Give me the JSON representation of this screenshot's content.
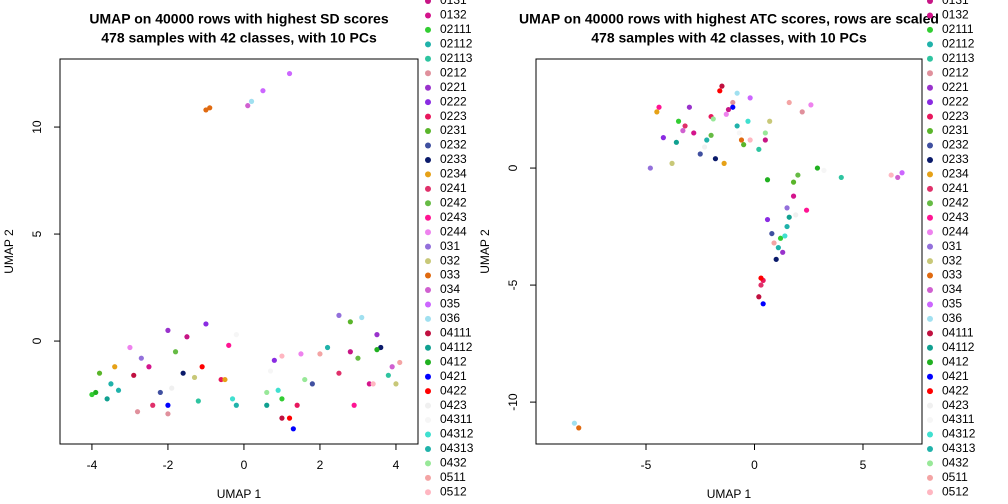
{
  "chart_data": [
    {
      "type": "scatter",
      "title": "UMAP on 40000 rows with highest SD scores",
      "subtitle": "478 samples with 42 classes, with 10 PCs",
      "x_label": "UMAP 1",
      "y_label": "UMAP 2",
      "xlim": [
        -4.84,
        4.58
      ],
      "ylim": [
        -4.81,
        13.18
      ],
      "xticks": [
        -4,
        -2,
        0,
        2,
        4
      ],
      "yticks": [
        0,
        5,
        10
      ],
      "series": [
        {
          "name": "0131",
          "color": "#c71585",
          "x": [
            -1.5,
            2.8
          ],
          "values": [
            0.2,
            -0.5
          ]
        },
        {
          "name": "0132",
          "color": "#d4148c",
          "x": [
            -2.5,
            3.3
          ],
          "values": [
            -1.2,
            -2.0
          ]
        },
        {
          "name": "02111",
          "color": "#32cd32",
          "x": [
            -4.0,
            1.0
          ],
          "values": [
            -2.5,
            -2.7
          ]
        },
        {
          "name": "02112",
          "color": "#20b2aa",
          "x": [
            -3.5,
            2.2
          ],
          "values": [
            -2.0,
            -0.3
          ]
        },
        {
          "name": "02113",
          "color": "#2ec4a0",
          "x": [
            -1.2,
            3.8
          ],
          "values": [
            -2.8,
            -1.6
          ]
        },
        {
          "name": "0212",
          "color": "#e0909c",
          "x": [
            -2.8,
            -2.0
          ],
          "values": [
            -3.3,
            -3.4
          ]
        },
        {
          "name": "0221",
          "color": "#9932cc",
          "x": [
            -2.0,
            3.5
          ],
          "values": [
            0.5,
            0.3
          ]
        },
        {
          "name": "0222",
          "color": "#8a2be2",
          "x": [
            -1.0,
            0.8
          ],
          "values": [
            0.8,
            -0.9
          ]
        },
        {
          "name": "0223",
          "color": "#e8175d",
          "x": [
            -0.6,
            1.4
          ],
          "values": [
            -1.8,
            -3.0
          ]
        },
        {
          "name": "0231",
          "color": "#5ab52a",
          "x": [
            -3.8,
            2.8
          ],
          "values": [
            -1.5,
            0.9
          ]
        },
        {
          "name": "0232",
          "color": "#4050a0",
          "x": [
            -2.2,
            1.8
          ],
          "values": [
            -2.4,
            -2.0
          ]
        },
        {
          "name": "0233",
          "color": "#0a1a6a",
          "x": [
            -1.6,
            3.6
          ],
          "values": [
            -1.5,
            -0.3
          ]
        },
        {
          "name": "0234",
          "color": "#e6a117",
          "x": [
            -3.4,
            -0.5
          ],
          "values": [
            -1.2,
            -1.8
          ]
        },
        {
          "name": "0241",
          "color": "#e0306a",
          "x": [
            -2.4,
            2.5
          ],
          "values": [
            -3.0,
            -1.5
          ]
        },
        {
          "name": "0242",
          "color": "#66bb44",
          "x": [
            -1.8,
            3.0
          ],
          "values": [
            -0.5,
            -0.8
          ]
        },
        {
          "name": "0243",
          "color": "#ff1493",
          "x": [
            -0.4,
            2.9
          ],
          "values": [
            -0.2,
            -3.0
          ]
        },
        {
          "name": "0244",
          "color": "#ee82ee",
          "x": [
            -3.0,
            1.5
          ],
          "values": [
            -0.3,
            -0.6
          ]
        },
        {
          "name": "031",
          "color": "#9370db",
          "x": [
            -2.7,
            2.5
          ],
          "values": [
            -0.8,
            1.2
          ]
        },
        {
          "name": "032",
          "color": "#c8c878",
          "x": [
            -1.3,
            4.0
          ],
          "values": [
            -1.7,
            -2.0
          ]
        },
        {
          "name": "033",
          "color": "#e06a10",
          "x": [
            -0.9,
            -1.0
          ],
          "values": [
            10.9,
            10.8
          ]
        },
        {
          "name": "034",
          "color": "#d060d0",
          "x": [
            0.1,
            3.9
          ],
          "values": [
            11.0,
            -1.2
          ]
        },
        {
          "name": "035",
          "color": "#cc66ff",
          "x": [
            1.2,
            0.5
          ],
          "values": [
            12.5,
            11.7
          ]
        },
        {
          "name": "036",
          "color": "#a0e0f0",
          "x": [
            0.2,
            3.1
          ],
          "values": [
            11.2,
            1.1
          ]
        },
        {
          "name": "04111",
          "color": "#c01040",
          "x": [
            -2.9,
            1.0
          ],
          "values": [
            -1.6,
            -3.6
          ]
        },
        {
          "name": "04112",
          "color": "#10a090",
          "x": [
            0.6,
            -3.6
          ],
          "values": [
            -3.0,
            -2.7
          ]
        },
        {
          "name": "0412",
          "color": "#20b020",
          "x": [
            3.5,
            -3.9
          ],
          "values": [
            -0.4,
            -2.4
          ]
        },
        {
          "name": "0421",
          "color": "#0000ff",
          "x": [
            -2.0,
            1.3
          ],
          "values": [
            -3.0,
            -4.1
          ]
        },
        {
          "name": "0422",
          "color": "#ff0000",
          "x": [
            1.2,
            -1.1
          ],
          "values": [
            -3.6,
            -1.2
          ]
        },
        {
          "name": "0423",
          "color": "#f0f0f0",
          "x": [
            2.0,
            -1.9
          ],
          "values": [
            -0.6,
            -2.2
          ]
        },
        {
          "name": "04311",
          "color": "#f6f6f6",
          "x": [
            0.7,
            -0.2
          ],
          "values": [
            -1.4,
            0.3
          ]
        },
        {
          "name": "04312",
          "color": "#40e0d0",
          "x": [
            -0.3,
            0.9
          ],
          "values": [
            -2.7,
            -2.3
          ]
        },
        {
          "name": "04313",
          "color": "#20b2aa",
          "x": [
            -0.2,
            -3.3
          ],
          "values": [
            -3.0,
            -2.3
          ]
        },
        {
          "name": "0432",
          "color": "#98e898",
          "x": [
            0.6,
            1.6
          ],
          "values": [
            -2.4,
            -1.8
          ]
        },
        {
          "name": "0511",
          "color": "#f4a4a4",
          "x": [
            4.1,
            2.0
          ],
          "values": [
            -1.0,
            -0.6
          ]
        },
        {
          "name": "0512",
          "color": "#ffb6c1",
          "x": [
            1.0,
            3.4
          ],
          "values": [
            -0.7,
            -2.0
          ]
        }
      ]
    },
    {
      "type": "scatter",
      "title": "UMAP on 40000 rows with highest ATC scores, rows are scaled",
      "subtitle": "478 samples with 42 classes, with 10 PCs",
      "x_label": "UMAP 1",
      "y_label": "UMAP 2",
      "xlim": [
        -10.07,
        7.72
      ],
      "ylim": [
        -11.79,
        4.66
      ],
      "xticks": [
        -5,
        0,
        5
      ],
      "yticks": [
        -10,
        -5,
        0
      ],
      "series": [
        {
          "name": "0131",
          "color": "#c71585",
          "x": [
            -1.2,
            0.5
          ],
          "values": [
            2.5,
            1.2
          ]
        },
        {
          "name": "0132",
          "color": "#d4148c",
          "x": [
            -2.8,
            1.8
          ],
          "values": [
            1.5,
            -1.2
          ]
        },
        {
          "name": "02111",
          "color": "#32cd32",
          "x": [
            -3.5,
            1.2
          ],
          "values": [
            2.0,
            -3.0
          ]
        },
        {
          "name": "02112",
          "color": "#20b2aa",
          "x": [
            -0.8,
            1.5
          ],
          "values": [
            1.8,
            -2.5
          ]
        },
        {
          "name": "02113",
          "color": "#2ec4a0",
          "x": [
            0.2,
            4.0
          ],
          "values": [
            0.8,
            -0.4
          ]
        },
        {
          "name": "0212",
          "color": "#e0909c",
          "x": [
            -1.0,
            2.2
          ],
          "values": [
            2.8,
            2.4
          ]
        },
        {
          "name": "0221",
          "color": "#9932cc",
          "x": [
            -3.0,
            1.3
          ],
          "values": [
            2.6,
            -3.6
          ]
        },
        {
          "name": "0222",
          "color": "#8a2be2",
          "x": [
            -4.2,
            0.6
          ],
          "values": [
            1.3,
            -2.2
          ]
        },
        {
          "name": "0223",
          "color": "#e8175d",
          "x": [
            0.4,
            -2.0
          ],
          "values": [
            -4.8,
            2.2
          ]
        },
        {
          "name": "0231",
          "color": "#5ab52a",
          "x": [
            -0.5,
            1.8
          ],
          "values": [
            1.0,
            -0.6
          ]
        },
        {
          "name": "0232",
          "color": "#4050a0",
          "x": [
            -2.5,
            0.8
          ],
          "values": [
            0.6,
            -2.8
          ]
        },
        {
          "name": "0233",
          "color": "#0a1a6a",
          "x": [
            -1.8,
            1.0
          ],
          "values": [
            0.4,
            -3.9
          ]
        },
        {
          "name": "0234",
          "color": "#e6a117",
          "x": [
            -4.5,
            -1.4
          ],
          "values": [
            2.4,
            0.2
          ]
        },
        {
          "name": "0241",
          "color": "#e0306a",
          "x": [
            -3.2,
            0.3
          ],
          "values": [
            1.8,
            -5.0
          ]
        },
        {
          "name": "0242",
          "color": "#66bb44",
          "x": [
            -2.0,
            2.0
          ],
          "values": [
            1.4,
            -0.3
          ]
        },
        {
          "name": "0243",
          "color": "#ff1493",
          "x": [
            -4.4,
            2.4
          ],
          "values": [
            2.6,
            -1.8
          ]
        },
        {
          "name": "0244",
          "color": "#ee82ee",
          "x": [
            -1.3,
            2.6
          ],
          "values": [
            2.3,
            2.7
          ]
        },
        {
          "name": "031",
          "color": "#9370db",
          "x": [
            -4.8,
            1.5
          ],
          "values": [
            0.0,
            -1.7
          ]
        },
        {
          "name": "032",
          "color": "#c8c878",
          "x": [
            -3.8,
            0.7
          ],
          "values": [
            0.2,
            2.0
          ]
        },
        {
          "name": "033",
          "color": "#e06a10",
          "x": [
            -8.1,
            -0.6
          ],
          "values": [
            -11.1,
            1.2
          ]
        },
        {
          "name": "034",
          "color": "#d060d0",
          "x": [
            -3.3,
            6.6
          ],
          "values": [
            1.6,
            -0.4
          ]
        },
        {
          "name": "035",
          "color": "#cc66ff",
          "x": [
            -0.2,
            6.8
          ],
          "values": [
            3.0,
            -0.2
          ]
        },
        {
          "name": "036",
          "color": "#a0e0f0",
          "x": [
            -8.3,
            -0.8
          ],
          "values": [
            -10.9,
            3.2
          ]
        },
        {
          "name": "04111",
          "color": "#c01040",
          "x": [
            -1.5,
            0.2
          ],
          "values": [
            3.5,
            -5.5
          ]
        },
        {
          "name": "04112",
          "color": "#10a090",
          "x": [
            -3.6,
            1.6
          ],
          "values": [
            1.1,
            -2.1
          ]
        },
        {
          "name": "0412",
          "color": "#20b020",
          "x": [
            0.6,
            2.9
          ],
          "values": [
            -0.5,
            0.0
          ]
        },
        {
          "name": "0421",
          "color": "#0000ff",
          "x": [
            0.4,
            -1.0
          ],
          "values": [
            -5.8,
            2.6
          ]
        },
        {
          "name": "0422",
          "color": "#ff0000",
          "x": [
            0.3,
            -1.6
          ],
          "values": [
            -4.7,
            3.3
          ]
        },
        {
          "name": "0423",
          "color": "#f0f0f0",
          "x": [
            1.9,
            -2.3
          ],
          "values": [
            -2.0,
            0.9
          ]
        },
        {
          "name": "04311",
          "color": "#f6f6f6",
          "x": [
            -0.7,
            3.2
          ],
          "values": [
            1.5,
            -0.1
          ]
        },
        {
          "name": "04312",
          "color": "#40e0d0",
          "x": [
            -0.3,
            1.4
          ],
          "values": [
            2.0,
            -2.9
          ]
        },
        {
          "name": "04313",
          "color": "#20b2aa",
          "x": [
            -2.2,
            1.1
          ],
          "values": [
            1.2,
            -3.4
          ]
        },
        {
          "name": "0432",
          "color": "#98e898",
          "x": [
            -1.9,
            0.5
          ],
          "values": [
            2.1,
            1.5
          ]
        },
        {
          "name": "0511",
          "color": "#f4a4a4",
          "x": [
            0.9,
            1.6
          ],
          "values": [
            -3.2,
            2.8
          ]
        },
        {
          "name": "0512",
          "color": "#ffb6c1",
          "x": [
            -0.2,
            6.3
          ],
          "values": [
            1.2,
            -0.3
          ]
        }
      ]
    }
  ]
}
